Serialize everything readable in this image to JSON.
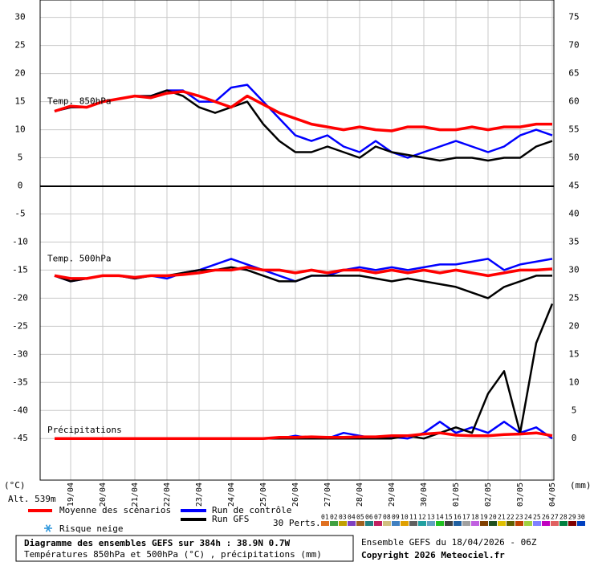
{
  "chart_data": {
    "type": "line",
    "x": [
      -0.5,
      0,
      0.5,
      1,
      1.5,
      2,
      2.5,
      3,
      3.5,
      4,
      4.5,
      5,
      5.5,
      6,
      6.5,
      7,
      7.5,
      8,
      8.5,
      9,
      9.5,
      10,
      10.5,
      11,
      11.5,
      12,
      12.5,
      13,
      13.5,
      14,
      14.5,
      15
    ],
    "xlim": [
      -0.95,
      15.05
    ],
    "xticks": [
      {
        "value": 0,
        "label": "19/04"
      },
      {
        "value": 1,
        "label": "20/04"
      },
      {
        "value": 2,
        "label": "21/04"
      },
      {
        "value": 3,
        "label": "22/04"
      },
      {
        "value": 4,
        "label": "23/04"
      },
      {
        "value": 5,
        "label": "24/04"
      },
      {
        "value": 6,
        "label": "25/04"
      },
      {
        "value": 7,
        "label": "26/04"
      },
      {
        "value": 8,
        "label": "27/04"
      },
      {
        "value": 9,
        "label": "28/04"
      },
      {
        "value": 10,
        "label": "29/04"
      },
      {
        "value": 11,
        "label": "30/04"
      },
      {
        "value": 12,
        "label": "01/05"
      },
      {
        "value": 13,
        "label": "02/05"
      },
      {
        "value": 14,
        "label": "03/05"
      },
      {
        "value": 15,
        "label": "04/05"
      }
    ],
    "ylim": [
      -52.4,
      33.1
    ],
    "yticks": [
      30,
      25,
      20,
      15,
      10,
      5,
      0,
      -5,
      -10,
      -15,
      -20,
      -25,
      -30,
      -35,
      -40,
      -45
    ],
    "y2lim": [
      -7.4,
      78.1
    ],
    "y2ticks": [
      75,
      70,
      65,
      60,
      55,
      50,
      45,
      40,
      35,
      30,
      25,
      20,
      15,
      10,
      5,
      0
    ],
    "ylabel": "(°C)",
    "y2label": "(mm)",
    "altitude": "Alt. 539m",
    "grid": true,
    "legend": [
      {
        "name": "Moyenne des scénarios",
        "color": "#ff0000"
      },
      {
        "name": "Run de contrôle",
        "color": "#0000ff"
      },
      {
        "name": "Run GFS",
        "color": "#000000"
      }
    ],
    "snow_label": "Risque neige",
    "panels": [
      {
        "label": "Temp. 850hPa",
        "value": 15,
        "series": [
          {
            "color": "#0000ff",
            "values": [
              13.3,
              14,
              14,
              15,
              15.5,
              16,
              16,
              17,
              17,
              15,
              15,
              17.5,
              18,
              15,
              12,
              9,
              8,
              9,
              7,
              6,
              8,
              6,
              5,
              6,
              7,
              8,
              7,
              6,
              7,
              9,
              10,
              9
            ]
          },
          {
            "color": "#000000",
            "values": [
              13.3,
              14,
              14,
              15,
              15.5,
              16,
              16,
              17,
              16,
              14,
              13,
              14,
              15,
              11,
              8,
              6,
              6,
              7,
              6,
              5,
              7,
              6,
              5.5,
              5,
              4.5,
              5,
              5,
              4.5,
              5,
              5,
              7,
              8
            ]
          },
          {
            "color": "#ff0000",
            "values": [
              13.3,
              14.2,
              14,
              15,
              15.5,
              16,
              15.7,
              16.5,
              16.8,
              16,
              15,
              14,
              16,
              14.5,
              13,
              12,
              11,
              10.5,
              10,
              10.5,
              10,
              9.8,
              10.5,
              10.5,
              10,
              10,
              10.5,
              10,
              10.5,
              10.5,
              11,
              11
            ]
          }
        ]
      },
      {
        "label": "Temp. 500hPa",
        "value": -13,
        "series": [
          {
            "color": "#0000ff",
            "values": [
              -16,
              -17,
              -16.5,
              -16,
              -16,
              -16.5,
              -16,
              -16.5,
              -15.5,
              -15,
              -14,
              -13,
              -14,
              -15,
              -16,
              -17,
              -16,
              -16,
              -15,
              -14.5,
              -15,
              -14.5,
              -15,
              -14.5,
              -14,
              -14,
              -13.5,
              -13,
              -15,
              -14,
              -13.5,
              -13
            ]
          },
          {
            "color": "#000000",
            "values": [
              -16,
              -17,
              -16.5,
              -16,
              -16,
              -16.5,
              -16,
              -16,
              -15.5,
              -15,
              -15,
              -14.5,
              -15,
              -16,
              -17,
              -17,
              -16,
              -16,
              -16,
              -16,
              -16.5,
              -17,
              -16.5,
              -17,
              -17.5,
              -18,
              -19,
              -20,
              -18,
              -17,
              -16,
              -16
            ]
          },
          {
            "color": "#ff0000",
            "values": [
              -16,
              -16.5,
              -16.5,
              -16,
              -16,
              -16.3,
              -16,
              -16,
              -15.8,
              -15.5,
              -15,
              -15,
              -14.5,
              -15,
              -15,
              -15.5,
              -15,
              -15.5,
              -15,
              -15,
              -15.5,
              -15,
              -15.5,
              -15,
              -15.5,
              -15,
              -15.5,
              -16,
              -15.5,
              -15,
              -15,
              -14.8
            ]
          }
        ]
      },
      {
        "label": "Précipitations",
        "value": -43.5,
        "series": [
          {
            "color": "#0000ff",
            "axis": "y2",
            "values": [
              0,
              0,
              0,
              0,
              0,
              0,
              0,
              0,
              0,
              0,
              0,
              0,
              0,
              0,
              0,
              0.5,
              0,
              0,
              1,
              0.5,
              0,
              0.3,
              0,
              1,
              3,
              1,
              2,
              1,
              3,
              1,
              2,
              0
            ]
          },
          {
            "color": "#000000",
            "axis": "y2",
            "values": [
              0,
              0,
              0,
              0,
              0,
              0,
              0,
              0,
              0,
              0,
              0,
              0,
              0,
              0,
              0,
              0,
              0,
              0,
              0,
              0,
              0,
              0,
              0.5,
              0,
              1,
              2,
              1,
              8,
              12,
              1,
              17,
              24
            ]
          },
          {
            "color": "#ff0000",
            "axis": "y2",
            "values": [
              0,
              0,
              0,
              0,
              0,
              0,
              0,
              0,
              0,
              0,
              0,
              0,
              0,
              0,
              0.2,
              0.2,
              0.3,
              0.2,
              0.2,
              0.3,
              0.3,
              0.5,
              0.5,
              0.8,
              1,
              0.6,
              0.5,
              0.5,
              0.7,
              0.8,
              1,
              0.5
            ]
          }
        ]
      }
    ],
    "perts_label": "30 Perts.",
    "perts": [
      {
        "label": "01",
        "color": "#e07020"
      },
      {
        "label": "02",
        "color": "#40a040"
      },
      {
        "label": "03",
        "color": "#c0a000"
      },
      {
        "label": "04",
        "color": "#8040c0"
      },
      {
        "label": "05",
        "color": "#a06020"
      },
      {
        "label": "06",
        "color": "#208080"
      },
      {
        "label": "07",
        "color": "#c02060"
      },
      {
        "label": "08",
        "color": "#d0c080"
      },
      {
        "label": "09",
        "color": "#4080c0"
      },
      {
        "label": "10",
        "color": "#e0a000"
      },
      {
        "label": "11",
        "color": "#606060"
      },
      {
        "label": "12",
        "color": "#20a0a0"
      },
      {
        "label": "13",
        "color": "#60a0c0"
      },
      {
        "label": "14",
        "color": "#20c020"
      },
      {
        "label": "15",
        "color": "#404040"
      },
      {
        "label": "16",
        "color": "#2060a0"
      },
      {
        "label": "17",
        "color": "#a0a0a0"
      },
      {
        "label": "18",
        "color": "#c060e0"
      },
      {
        "label": "19",
        "color": "#804000"
      },
      {
        "label": "20",
        "color": "#205020"
      },
      {
        "label": "21",
        "color": "#e0c000"
      },
      {
        "label": "22",
        "color": "#606000"
      },
      {
        "label": "23",
        "color": "#c04000"
      },
      {
        "label": "24",
        "color": "#a0d040"
      },
      {
        "label": "25",
        "color": "#8080ff"
      },
      {
        "label": "26",
        "color": "#c000c0"
      },
      {
        "label": "27",
        "color": "#e06060"
      },
      {
        "label": "28",
        "color": "#008040"
      },
      {
        "label": "29",
        "color": "#800000"
      },
      {
        "label": "30",
        "color": "#0040c0"
      }
    ],
    "title": "Diagramme des ensembles GEFS sur 384h : 38.9N 0.7W",
    "subtitle": "Températures 850hPa et 500hPa (°C) , précipitations (mm)",
    "run_info": "Ensemble GEFS du 18/04/2026 - 06Z",
    "copyright": "Copyright 2026 Meteociel.fr"
  }
}
